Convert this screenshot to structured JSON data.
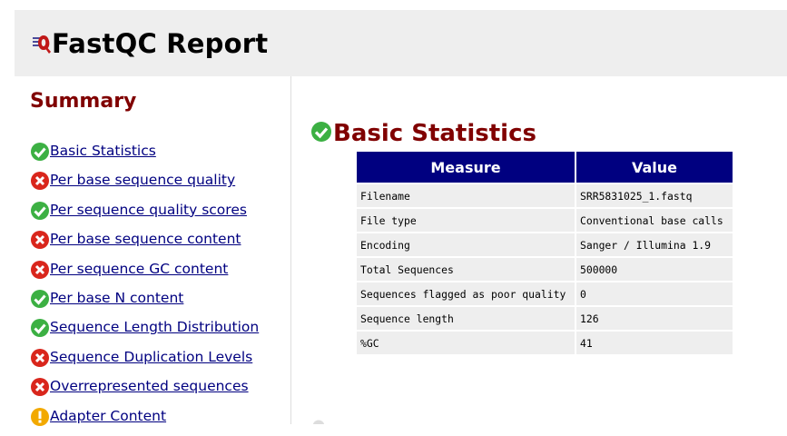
{
  "header": {
    "title": "FastQC Report",
    "logo_icon": "fastqc-logo-icon"
  },
  "summary": {
    "heading": "Summary",
    "items": [
      {
        "label": "Basic Statistics",
        "status": "pass",
        "icon": "pass-check-icon"
      },
      {
        "label": "Per base sequence quality",
        "status": "fail",
        "icon": "fail-cross-icon"
      },
      {
        "label": "Per sequence quality scores",
        "status": "pass",
        "icon": "pass-check-icon"
      },
      {
        "label": "Per base sequence content",
        "status": "fail",
        "icon": "fail-cross-icon"
      },
      {
        "label": "Per sequence GC content",
        "status": "fail",
        "icon": "fail-cross-icon"
      },
      {
        "label": "Per base N content",
        "status": "pass",
        "icon": "pass-check-icon"
      },
      {
        "label": "Sequence Length Distribution",
        "status": "pass",
        "icon": "pass-check-icon"
      },
      {
        "label": "Sequence Duplication Levels",
        "status": "fail",
        "icon": "fail-cross-icon"
      },
      {
        "label": "Overrepresented sequences",
        "status": "fail",
        "icon": "fail-cross-icon"
      },
      {
        "label": "Adapter Content",
        "status": "warn",
        "icon": "warn-exclamation-icon"
      }
    ]
  },
  "main": {
    "section_title": "Basic Statistics",
    "section_status": "pass",
    "table": {
      "headers": [
        "Measure",
        "Value"
      ],
      "rows": [
        [
          "Filename",
          "SRR5831025_1.fastq"
        ],
        [
          "File type",
          "Conventional base calls"
        ],
        [
          "Encoding",
          "Sanger / Illumina 1.9"
        ],
        [
          "Total Sequences",
          "500000"
        ],
        [
          "Sequences flagged as poor quality",
          "0"
        ],
        [
          "Sequence length",
          "126"
        ],
        [
          "%GC",
          "41"
        ]
      ]
    }
  },
  "colors": {
    "heading": "#800000",
    "link": "#000080",
    "table_header_bg": "#000080",
    "row_bg": "#eeeeee",
    "header_bg": "#eeeeee",
    "pass": "#3cb043",
    "fail": "#d9261c",
    "warn": "#f2a900"
  }
}
